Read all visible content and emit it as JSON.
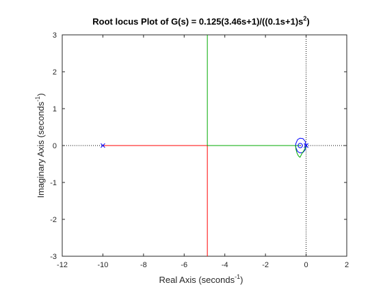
{
  "chart_data": {
    "type": "line",
    "title": {
      "main": "Root locus Plot of G(s) = 0.125(3.46s+1)/((0.1s+1)s",
      "exponent": "2",
      "close": ")"
    },
    "xlabel": {
      "main": "Real Axis (seconds",
      "exponent": "-1",
      "close": ")"
    },
    "ylabel": {
      "main": "Imaginary Axis (seconds",
      "exponent": "-1",
      "close": ")"
    },
    "xlim": [
      -12,
      2
    ],
    "ylim": [
      -3,
      3
    ],
    "xticks": [
      -12,
      -10,
      -8,
      -6,
      -4,
      -2,
      0,
      2
    ],
    "yticks": [
      -3,
      -2,
      -1,
      0,
      1,
      2,
      3
    ],
    "xtick_labels": [
      "-12",
      "-10",
      "-8",
      "-6",
      "-4",
      "-2",
      "0",
      "2"
    ],
    "ytick_labels": [
      "-3",
      "-2",
      "-1",
      "0",
      "1",
      "2",
      "3"
    ],
    "poles": [
      {
        "re": -10,
        "im": 0
      },
      {
        "re": 0,
        "im": 0
      },
      {
        "re": 0,
        "im": 0
      }
    ],
    "zeros": [
      {
        "re": -0.289,
        "im": 0
      }
    ],
    "series": [
      {
        "color": "#ff0000",
        "points": [
          [
            -10,
            0
          ],
          [
            -4.86,
            0
          ],
          [
            -4.86,
            -3
          ]
        ]
      },
      {
        "color": "#00aa00",
        "points": [
          [
            -4.86,
            3
          ],
          [
            -4.86,
            0
          ],
          [
            -0.289,
            0
          ]
        ]
      },
      {
        "color": "#0000ff",
        "points": [
          [
            0,
            0
          ],
          [
            -0.05,
            0.12
          ],
          [
            -0.16,
            0.19
          ],
          [
            -0.3,
            0.2
          ],
          [
            -0.42,
            0.16
          ],
          [
            -0.5,
            0.06
          ],
          [
            -0.52,
            0
          ],
          [
            -0.5,
            -0.06
          ],
          [
            -0.42,
            -0.16
          ],
          [
            -0.3,
            -0.2
          ],
          [
            -0.16,
            -0.19
          ],
          [
            -0.05,
            -0.12
          ],
          [
            -0.002,
            -0.02
          ]
        ]
      },
      {
        "color": "#00aa00",
        "points": [
          [
            -0.002,
            -0.02
          ],
          [
            -0.1,
            -0.13
          ],
          [
            -0.2,
            -0.21
          ],
          [
            -0.3,
            -0.32
          ],
          [
            -0.38,
            -0.28
          ],
          [
            -0.45,
            -0.2
          ],
          [
            -0.5,
            -0.1
          ],
          [
            -0.52,
            0
          ]
        ]
      }
    ],
    "reference_lines": [
      {
        "orientation": "horizontal",
        "value": 0,
        "style": "dotted"
      },
      {
        "orientation": "vertical",
        "value": 0,
        "style": "dotted"
      }
    ],
    "grid": false,
    "colors": {
      "axes": "#262626",
      "pole_marker": "#0000ff",
      "zero_marker": "#0000ff"
    }
  }
}
